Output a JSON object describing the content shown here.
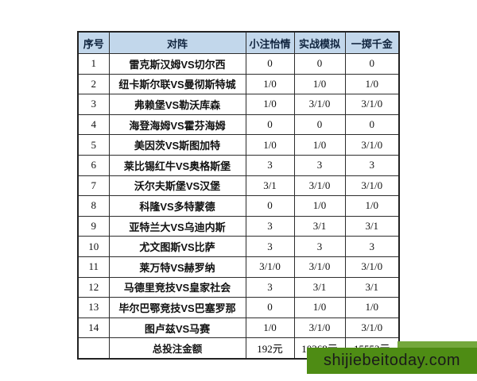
{
  "colors": {
    "header_bg": "#c2d7eb",
    "border": "#2d2d2d",
    "watermark_bg": "#4e8c14",
    "watermark_bg_light": "#74a83c"
  },
  "table": {
    "headers": {
      "no": "序号",
      "match": "对阵",
      "small_bet": "小注怡情",
      "simulation": "实战模拟",
      "gold": "一掷千金"
    },
    "rows": [
      {
        "no": "1",
        "match": "雷克斯汉姆VS切尔西",
        "small": "0",
        "sim": "0",
        "gold": "0"
      },
      {
        "no": "2",
        "match": "纽卡斯尔联VS曼彻斯特城",
        "small": "1/0",
        "sim": "1/0",
        "gold": "1/0"
      },
      {
        "no": "3",
        "match": "弗赖堡VS勒沃库森",
        "small": "1/0",
        "sim": "3/1/0",
        "gold": "3/1/0"
      },
      {
        "no": "4",
        "match": "海登海姆VS霍芬海姆",
        "small": "0",
        "sim": "0",
        "gold": "0"
      },
      {
        "no": "5",
        "match": "美因茨VS斯图加特",
        "small": "1/0",
        "sim": "1/0",
        "gold": "3/1/0"
      },
      {
        "no": "6",
        "match": "莱比锡红牛VS奥格斯堡",
        "small": "3",
        "sim": "3",
        "gold": "3"
      },
      {
        "no": "7",
        "match": "沃尔夫斯堡VS汉堡",
        "small": "3/1",
        "sim": "3/1/0",
        "gold": "3/1/0"
      },
      {
        "no": "8",
        "match": "科隆VS多特蒙德",
        "small": "0",
        "sim": "1/0",
        "gold": "1/0"
      },
      {
        "no": "9",
        "match": "亚特兰大VS乌迪内斯",
        "small": "3",
        "sim": "3/1",
        "gold": "3/1"
      },
      {
        "no": "10",
        "match": "尤文图斯VS比萨",
        "small": "3",
        "sim": "3",
        "gold": "3"
      },
      {
        "no": "11",
        "match": "莱万特VS赫罗纳",
        "small": "3/1/0",
        "sim": "3/1/0",
        "gold": "3/1/0"
      },
      {
        "no": "12",
        "match": "马德里竞技VS皇家社会",
        "small": "3",
        "sim": "3/1",
        "gold": "3/1"
      },
      {
        "no": "13",
        "match": "毕尔巴鄂竞技VS巴塞罗那",
        "small": "0",
        "sim": "1/0",
        "gold": "1/0"
      },
      {
        "no": "14",
        "match": "图卢兹VS马赛",
        "small": "1/0",
        "sim": "3/1/0",
        "gold": "3/1/0"
      }
    ],
    "total": {
      "no": "",
      "label": "总投注金额",
      "small": "192元",
      "sim": "10368元",
      "gold": "15552元"
    }
  },
  "watermark": {
    "text": "shijiebeitoday.com"
  }
}
